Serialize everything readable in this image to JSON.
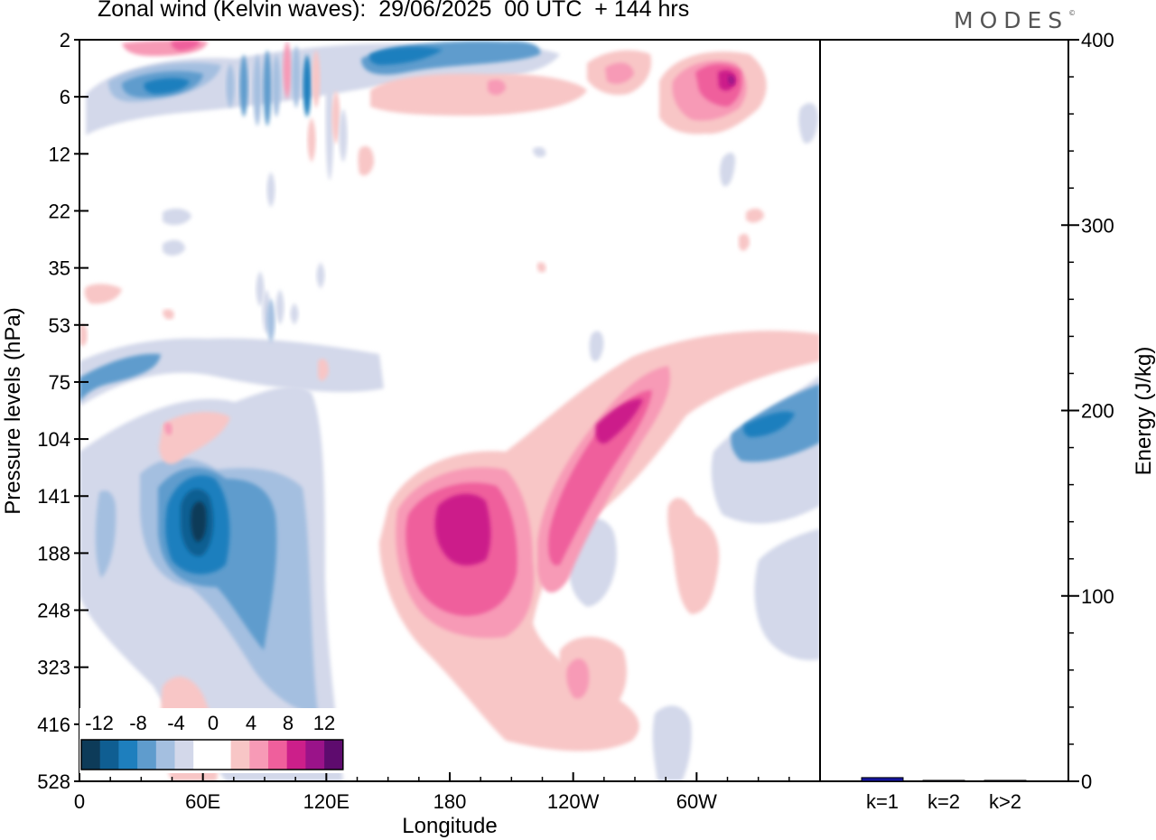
{
  "title": "Zonal wind (Kelvin waves):  29/06/2025  00 UTC  + 144 hrs",
  "brand": "MODES",
  "brand_mark": "©",
  "colors": {
    "neg": [
      "#0d3b59",
      "#0f5e92",
      "#1e7fbe",
      "#5f9ccd",
      "#a4bfe0",
      "#d3d8ea"
    ],
    "pos": [
      "#f8c6c6",
      "#f79ab6",
      "#ef5f9c",
      "#cc1f8a",
      "#9a1389",
      "#5e0b6e"
    ],
    "bar": "#14149c"
  },
  "chart_data": [
    {
      "type": "heatmap",
      "title": "Zonal wind (Kelvin waves):  29/06/2025  00 UTC  + 144 hrs",
      "xlabel": "Longitude",
      "ylabel": "Pressure levels (hPa)",
      "x_ticks": [
        "0",
        "60E",
        "120E",
        "180",
        "120W",
        "60W"
      ],
      "x_tick_values": [
        0,
        60,
        120,
        180,
        240,
        300
      ],
      "xlim": [
        0,
        360
      ],
      "y_ticks": [
        "2",
        "6",
        "12",
        "22",
        "35",
        "53",
        "75",
        "104",
        "141",
        "188",
        "248",
        "323",
        "416",
        "528"
      ],
      "colorbar_labels": [
        "-12",
        "-8",
        "-4",
        "0",
        "4",
        "8",
        "12"
      ],
      "features": [
        {
          "sign": "neg",
          "lon": 58,
          "pressure": 150,
          "value": -13
        },
        {
          "sign": "neg",
          "lon": 80,
          "pressure": 160,
          "value": -7
        },
        {
          "sign": "neg",
          "lon": 100,
          "pressure": 300,
          "value": -6
        },
        {
          "sign": "neg",
          "lon": 20,
          "pressure": 88,
          "value": -6
        },
        {
          "sign": "neg",
          "lon": 55,
          "pressure": 6,
          "value": -8
        },
        {
          "sign": "neg",
          "lon": 200,
          "pressure": 3,
          "value": -6
        },
        {
          "sign": "neg",
          "lon": 340,
          "pressure": 110,
          "value": -8
        },
        {
          "sign": "neg",
          "lon": 248,
          "pressure": 188,
          "value": -5
        },
        {
          "sign": "pos",
          "lon": 188,
          "pressure": 150,
          "value": 11
        },
        {
          "sign": "pos",
          "lon": 250,
          "pressure": 100,
          "value": 9
        },
        {
          "sign": "pos",
          "lon": 318,
          "pressure": 5,
          "value": 9
        },
        {
          "sign": "pos",
          "lon": 240,
          "pressure": 320,
          "value": 5
        },
        {
          "sign": "pos",
          "lon": 200,
          "pressure": 6,
          "value": 5
        },
        {
          "sign": "pos",
          "lon": 100,
          "pressure": 2,
          "value": 6
        }
      ]
    },
    {
      "type": "bar",
      "categories": [
        "k=1",
        "k=2",
        "k>2"
      ],
      "values": [
        2,
        0.5,
        0.5
      ],
      "ylabel": "Energy (J/kg)",
      "ylim": [
        0,
        400
      ],
      "y_ticks": [
        "0",
        "100",
        "200",
        "300",
        "400"
      ],
      "y_tick_values": [
        0,
        100,
        200,
        300,
        400
      ]
    }
  ]
}
